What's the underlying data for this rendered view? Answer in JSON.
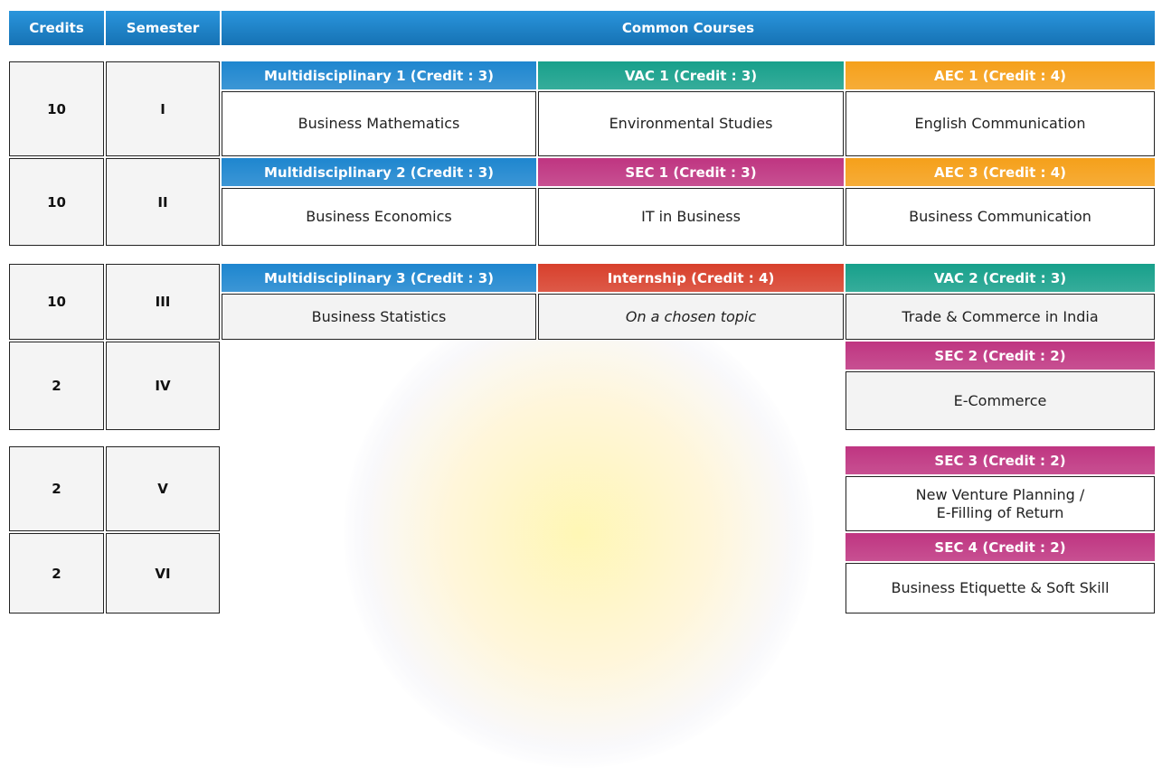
{
  "header": {
    "credits": "Credits",
    "semester": "Semester",
    "common_courses": "Common Courses"
  },
  "rows": [
    {
      "credits": "10",
      "semester": "I",
      "courses": [
        {
          "heading": "Multidisciplinary 1 (Credit : 3)",
          "name": "Business Mathematics",
          "color": "#1e86cf"
        },
        {
          "heading": "VAC 1 (Credit : 3)",
          "name": "Environmental Studies",
          "color": "#17a08b"
        },
        {
          "heading": "AEC 1 (Credit : 4)",
          "name": "English Communication",
          "color": "#f5a01a"
        }
      ]
    },
    {
      "credits": "10",
      "semester": "II",
      "courses": [
        {
          "heading": "Multidisciplinary 2 (Credit : 3)",
          "name": "Business Economics",
          "color": "#1e86cf"
        },
        {
          "heading": "SEC 1 (Credit : 3)",
          "name": "IT in Business",
          "color": "#bf3581"
        },
        {
          "heading": "AEC 3 (Credit : 4)",
          "name": "Business Communication",
          "color": "#f5a01a"
        }
      ]
    },
    {
      "credits": "10",
      "semester": "III",
      "courses": [
        {
          "heading": "Multidisciplinary 3 (Credit : 3)",
          "name": "Business Statistics",
          "color": "#1e86cf"
        },
        {
          "heading": "Internship (Credit : 4)",
          "name": "On a chosen topic",
          "color": "#d8402c",
          "italic": true
        },
        {
          "heading": "VAC 2 (Credit : 3)",
          "name": "Trade & Commerce in India",
          "color": "#17a08b"
        }
      ]
    },
    {
      "credits": "2",
      "semester": "IV",
      "courses": [
        {
          "heading": "SEC 2 (Credit : 2)",
          "name": "E-Commerce",
          "color": "#bf3581"
        }
      ]
    },
    {
      "credits": "2",
      "semester": "V",
      "courses": [
        {
          "heading": "SEC 3 (Credit : 2)",
          "name": "New Venture Planning /\nE-Filling of Return",
          "color": "#bf3581"
        }
      ]
    },
    {
      "credits": "2",
      "semester": "VI",
      "courses": [
        {
          "heading": "SEC 4 (Credit : 2)",
          "name": "Business Etiquette & Soft Skill",
          "color": "#bf3581"
        }
      ]
    }
  ]
}
